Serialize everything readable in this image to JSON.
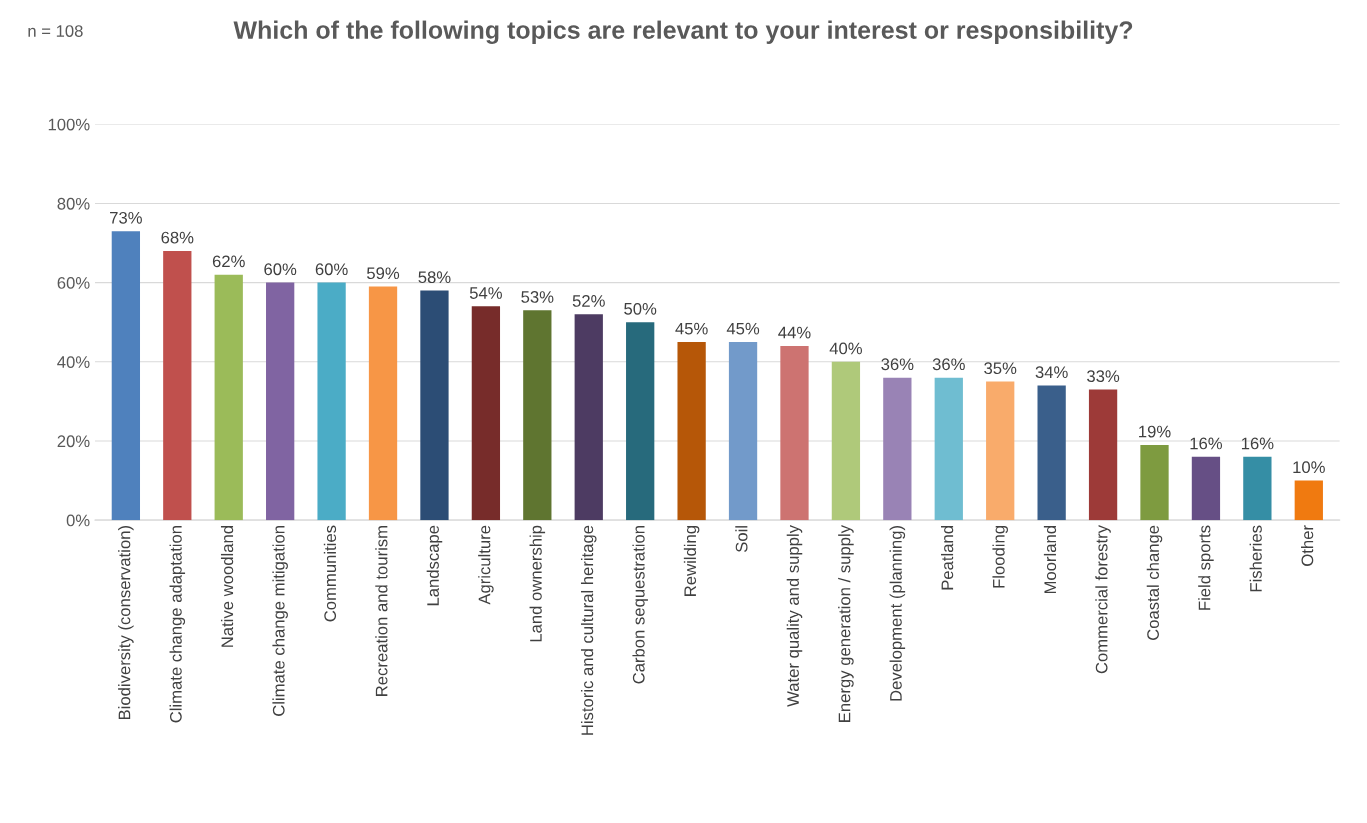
{
  "chart_data": {
    "type": "bar",
    "title": "Which of the following topics are relevant to your interest or responsibility?",
    "annotations": [
      "n = 108"
    ],
    "categories": [
      "Biodiversity (conservation)",
      "Climate change adaptation",
      "Native woodland",
      "Climate change mitigation",
      "Communities",
      "Recreation and tourism",
      "Landscape",
      "Agriculture",
      "Land ownership",
      "Historic and cultural heritage",
      "Carbon sequestration",
      "Rewilding",
      "Soil",
      "Water quality and supply",
      "Energy generation / supply",
      "Development (planning)",
      "Peatland",
      "Flooding",
      "Moorland",
      "Commercial forestry",
      "Coastal change",
      "Field sports",
      "Fisheries",
      "Other"
    ],
    "values": [
      73,
      68,
      62,
      60,
      60,
      59,
      58,
      54,
      53,
      52,
      50,
      45,
      45,
      44,
      40,
      36,
      36,
      35,
      34,
      33,
      19,
      16,
      16,
      10
    ],
    "value_labels": [
      "73%",
      "68%",
      "62%",
      "60%",
      "60%",
      "59%",
      "58%",
      "54%",
      "53%",
      "52%",
      "50%",
      "45%",
      "45%",
      "44%",
      "40%",
      "36%",
      "36%",
      "35%",
      "34%",
      "33%",
      "19%",
      "16%",
      "16%",
      "10%"
    ],
    "colors": [
      "#4f81bd",
      "#c0504d",
      "#9bbb59",
      "#8064a2",
      "#4bacc6",
      "#f79646",
      "#2c4d75",
      "#772c2a",
      "#5f7530",
      "#4d3b62",
      "#276a7c",
      "#b65708",
      "#729aca",
      "#cd7371",
      "#afc97a",
      "#9983b5",
      "#6fbdd1",
      "#f9ab6b",
      "#3a5f8b",
      "#9d3a38",
      "#7e9b40",
      "#664f85",
      "#358ea5",
      "#f07a10"
    ],
    "ylim": [
      0,
      100
    ],
    "yticks": [
      {
        "value": 0,
        "label": "0%"
      },
      {
        "value": 20,
        "label": "20%"
      },
      {
        "value": 40,
        "label": "40%"
      },
      {
        "value": 60,
        "label": "60%"
      },
      {
        "value": 80,
        "label": "80%"
      },
      {
        "value": 100,
        "label": "100%"
      }
    ],
    "grid": "y",
    "legend": false
  }
}
